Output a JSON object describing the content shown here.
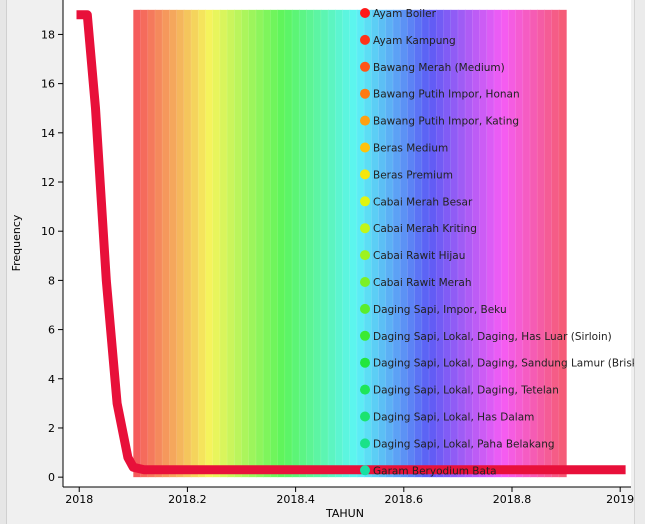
{
  "chart_data": {
    "type": "line",
    "xlabel": "TAHUN",
    "ylabel": "Frequency",
    "xlim": [
      2017.97,
      2019.02
    ],
    "ylim": [
      -0.4,
      19.4
    ],
    "x_ticks": [
      "2018",
      "2018.2",
      "2018.4",
      "2018.6",
      "2018.8",
      "2019"
    ],
    "x_tick_values": [
      2018,
      2018.2,
      2018.4,
      2018.6,
      2018.8,
      2019
    ],
    "y_ticks": [
      "0",
      "2",
      "4",
      "6",
      "8",
      "10",
      "12",
      "14",
      "16",
      "18"
    ],
    "y_tick_values": [
      0,
      2,
      4,
      6,
      8,
      10,
      12,
      14,
      16,
      18
    ],
    "grid": false,
    "legend_position": "right",
    "band": {
      "x_start": 2018.1,
      "x_end": 2018.9,
      "y_top": 19
    },
    "series": [
      {
        "name": "",
        "color": "#e8103a",
        "x": [
          2017.995,
          2018.015,
          2018.03,
          2018.05,
          2018.07,
          2018.09,
          2018.1,
          2018.12,
          2018.3,
          2018.6,
          2018.9,
          2019.01
        ],
        "y": [
          18.8,
          18.8,
          15.0,
          8.0,
          3.0,
          0.8,
          0.4,
          0.3,
          0.3,
          0.3,
          0.3,
          0.3
        ]
      }
    ],
    "legend": [
      {
        "label": "Ayam Boiler",
        "color": "#ff1a1a"
      },
      {
        "label": "Ayam Kampung",
        "color": "#ff3318"
      },
      {
        "label": "Bawang Merah (Medium)",
        "color": "#ff5516"
      },
      {
        "label": "Bawang Putih Impor, Honan",
        "color": "#ff7a10"
      },
      {
        "label": "Bawang Putih Impor, Kating",
        "color": "#ffa010"
      },
      {
        "label": "Beras Medium",
        "color": "#ffc20a"
      },
      {
        "label": "Beras Premium",
        "color": "#f5e60a"
      },
      {
        "label": "Cabai Merah Besar",
        "color": "#e2f50f"
      },
      {
        "label": "Cabai Merah Kriting",
        "color": "#c2f518"
      },
      {
        "label": "Cabai Rawit Hijau",
        "color": "#9ef21f"
      },
      {
        "label": "Cabai Rawit Merah",
        "color": "#7cf026"
      },
      {
        "label": "Daging Sapi, Impor, Beku",
        "color": "#5aed2c"
      },
      {
        "label": "Daging Sapi, Lokal, Daging, Has Luar (Sirloin)",
        "color": "#3bea32"
      },
      {
        "label": "Daging Sapi, Lokal, Daging, Sandung Lamur (Brisket)",
        "color": "#22e63e"
      },
      {
        "label": "Daging Sapi, Lokal, Daging, Tetelan",
        "color": "#1ee557"
      },
      {
        "label": "Daging Sapi, Lokal, Has Dalam",
        "color": "#1be36f"
      },
      {
        "label": "Daging Sapi, Lokal, Paha Belakang",
        "color": "#1ae288"
      },
      {
        "label": "Garam Beryodium Bata",
        "color": "#18e0a2"
      }
    ]
  }
}
